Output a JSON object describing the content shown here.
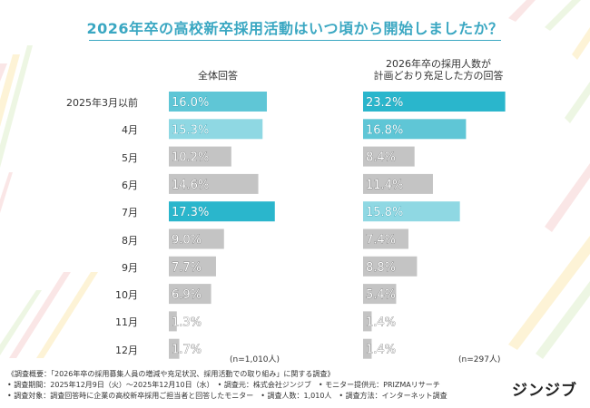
{
  "title": "2026年卒の高校新卒採用活動はいつ頃から開始しましたか？",
  "chart_data": [
    {
      "type": "bar",
      "orientation": "horizontal",
      "title": "全体回答",
      "categories": [
        "2025年3月以前",
        "4月",
        "5月",
        "6月",
        "7月",
        "8月",
        "9月",
        "10月",
        "11月",
        "12月"
      ],
      "values": [
        16.0,
        15.3,
        10.2,
        14.6,
        17.3,
        9.0,
        7.7,
        6.9,
        1.3,
        1.7
      ],
      "labels": [
        "16.0%",
        "15.3%",
        "10.2%",
        "14.6%",
        "17.3%",
        "9.0%",
        "7.7%",
        "6.9%",
        "1.3%",
        "1.7%"
      ],
      "colors": [
        "#5fc6d6",
        "#8fd8e3",
        "#c4c4c4",
        "#c4c4c4",
        "#2ab6cc",
        "#c4c4c4",
        "#c4c4c4",
        "#c4c4c4",
        "#c4c4c4",
        "#c4c4c4"
      ],
      "xlim": [
        0,
        24
      ],
      "note": "(n=1,010人)"
    },
    {
      "type": "bar",
      "orientation": "horizontal",
      "title": "2026年卒の採用人数が計画どおり充足した方の回答",
      "categories": [
        "2025年3月以前",
        "4月",
        "5月",
        "6月",
        "7月",
        "8月",
        "9月",
        "10月",
        "11月",
        "12月"
      ],
      "values": [
        23.2,
        16.8,
        8.4,
        11.4,
        15.8,
        7.4,
        8.8,
        5.4,
        1.4,
        1.4
      ],
      "labels": [
        "23.2%",
        "16.8%",
        "8.4%",
        "11.4%",
        "15.8%",
        "7.4%",
        "8.8%",
        "5.4%",
        "1.4%",
        "1.4%"
      ],
      "colors": [
        "#2ab6cc",
        "#5fc6d6",
        "#c4c4c4",
        "#c4c4c4",
        "#8fd8e3",
        "#c4c4c4",
        "#c4c4c4",
        "#c4c4c4",
        "#c4c4c4",
        "#c4c4c4"
      ],
      "xlim": [
        0,
        24
      ],
      "note": "(n=297人)"
    }
  ],
  "header": {
    "left": "全体回答",
    "right_line1": "2026年卒の採用人数が",
    "right_line2": "計画どおり充足した方の回答"
  },
  "footer": {
    "line1": "《調査概要：「2026年卒の採用募集人員の増減や充足状況、採用活動での取り組み」に関する調査》",
    "line2": "• 調査期間：2025年12月9日（火）〜2025年12月10日（水）　• 調査元：株式会社ジンジブ　• モニター提供元：PRIZMAリサーチ",
    "line3": "• 調査対象：調査回答時に企業の高校新卒採用ご担当者と回答したモニター　• 調査人数：1,010人　• 調査方法：インターネット調査"
  },
  "brand": "ジンジブ",
  "colors": {
    "accent": "#3aa7c2",
    "gray_bar": "#c4c4c4"
  }
}
